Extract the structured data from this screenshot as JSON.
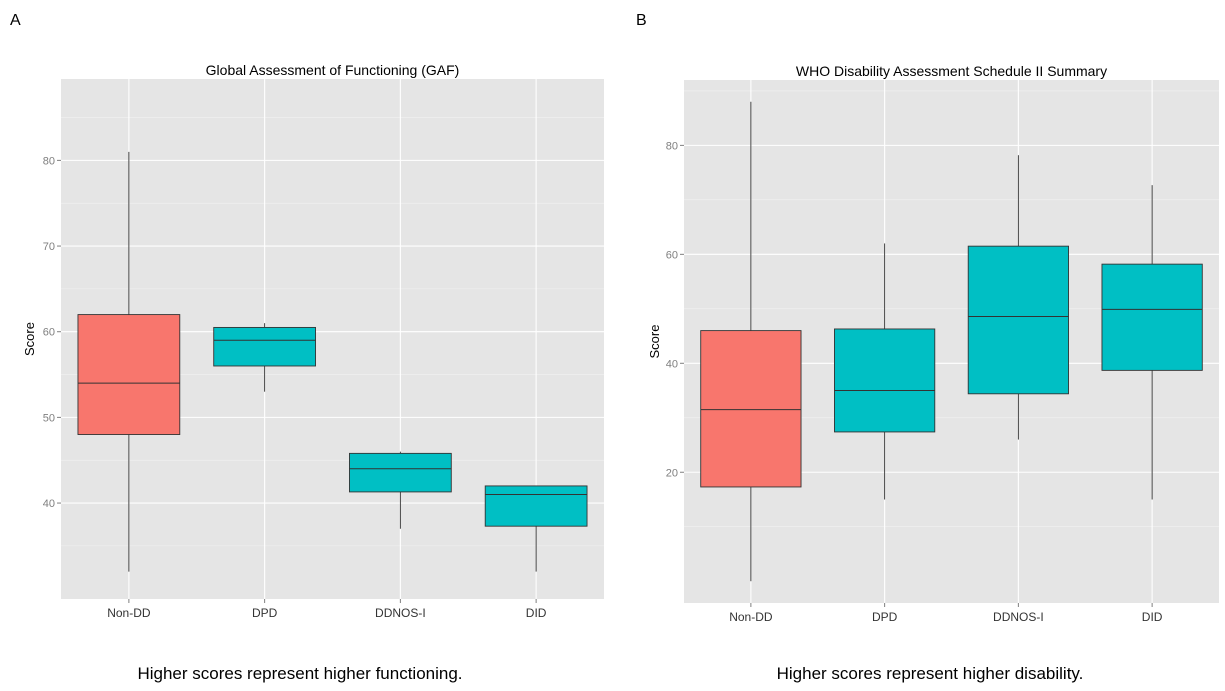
{
  "panels": {
    "a": {
      "letter": "A",
      "caption": "Higher scores represent higher functioning."
    },
    "b": {
      "letter": "B",
      "caption": "Higher scores represent higher disability."
    }
  },
  "colors": {
    "non_dd": "#F8766D",
    "dd": "#00BFC4",
    "panel_bg": "#E5E5E5",
    "grid": "#FFFFFF"
  },
  "chart_data": [
    {
      "type": "boxplot",
      "title": "Global Assessment of Functioning (GAF)",
      "xlabel": "",
      "ylabel": "Score",
      "categories": [
        "Non-DD",
        "DPD",
        "DDNOS-I",
        "DID"
      ],
      "ylim": [
        28.8,
        89.5
      ],
      "yticks": [
        40,
        50,
        60,
        70,
        80
      ],
      "grid": true,
      "boxes": [
        {
          "category": "Non-DD",
          "min": 32,
          "q1": 48,
          "median": 54,
          "q3": 62,
          "max": 81
        },
        {
          "category": "DPD",
          "min": 53,
          "q1": 56,
          "median": 59,
          "q3": 60.5,
          "max": 61
        },
        {
          "category": "DDNOS-I",
          "min": 37,
          "q1": 41.3,
          "median": 44,
          "q3": 45.8,
          "max": 46
        },
        {
          "category": "DID",
          "min": 32,
          "q1": 37.3,
          "median": 41,
          "q3": 42,
          "max": 42
        }
      ]
    },
    {
      "type": "boxplot",
      "title": "WHO Disability Assessment Schedule II Summary",
      "xlabel": "",
      "ylabel": "Score",
      "categories": [
        "Non-DD",
        "DPD",
        "DDNOS-I",
        "DID"
      ],
      "ylim": [
        -4,
        92
      ],
      "yticks": [
        20,
        40,
        60,
        80
      ],
      "grid": true,
      "boxes": [
        {
          "category": "Non-DD",
          "min": 0,
          "q1": 17.3,
          "median": 31.5,
          "q3": 46,
          "max": 88
        },
        {
          "category": "DPD",
          "min": 15,
          "q1": 27.4,
          "median": 35,
          "q3": 46.3,
          "max": 62
        },
        {
          "category": "DDNOS-I",
          "min": 26,
          "q1": 34.4,
          "median": 48.6,
          "q3": 61.5,
          "max": 78.2
        },
        {
          "category": "DID",
          "min": 15,
          "q1": 38.7,
          "median": 49.9,
          "q3": 58.2,
          "max": 72.7
        }
      ]
    }
  ]
}
